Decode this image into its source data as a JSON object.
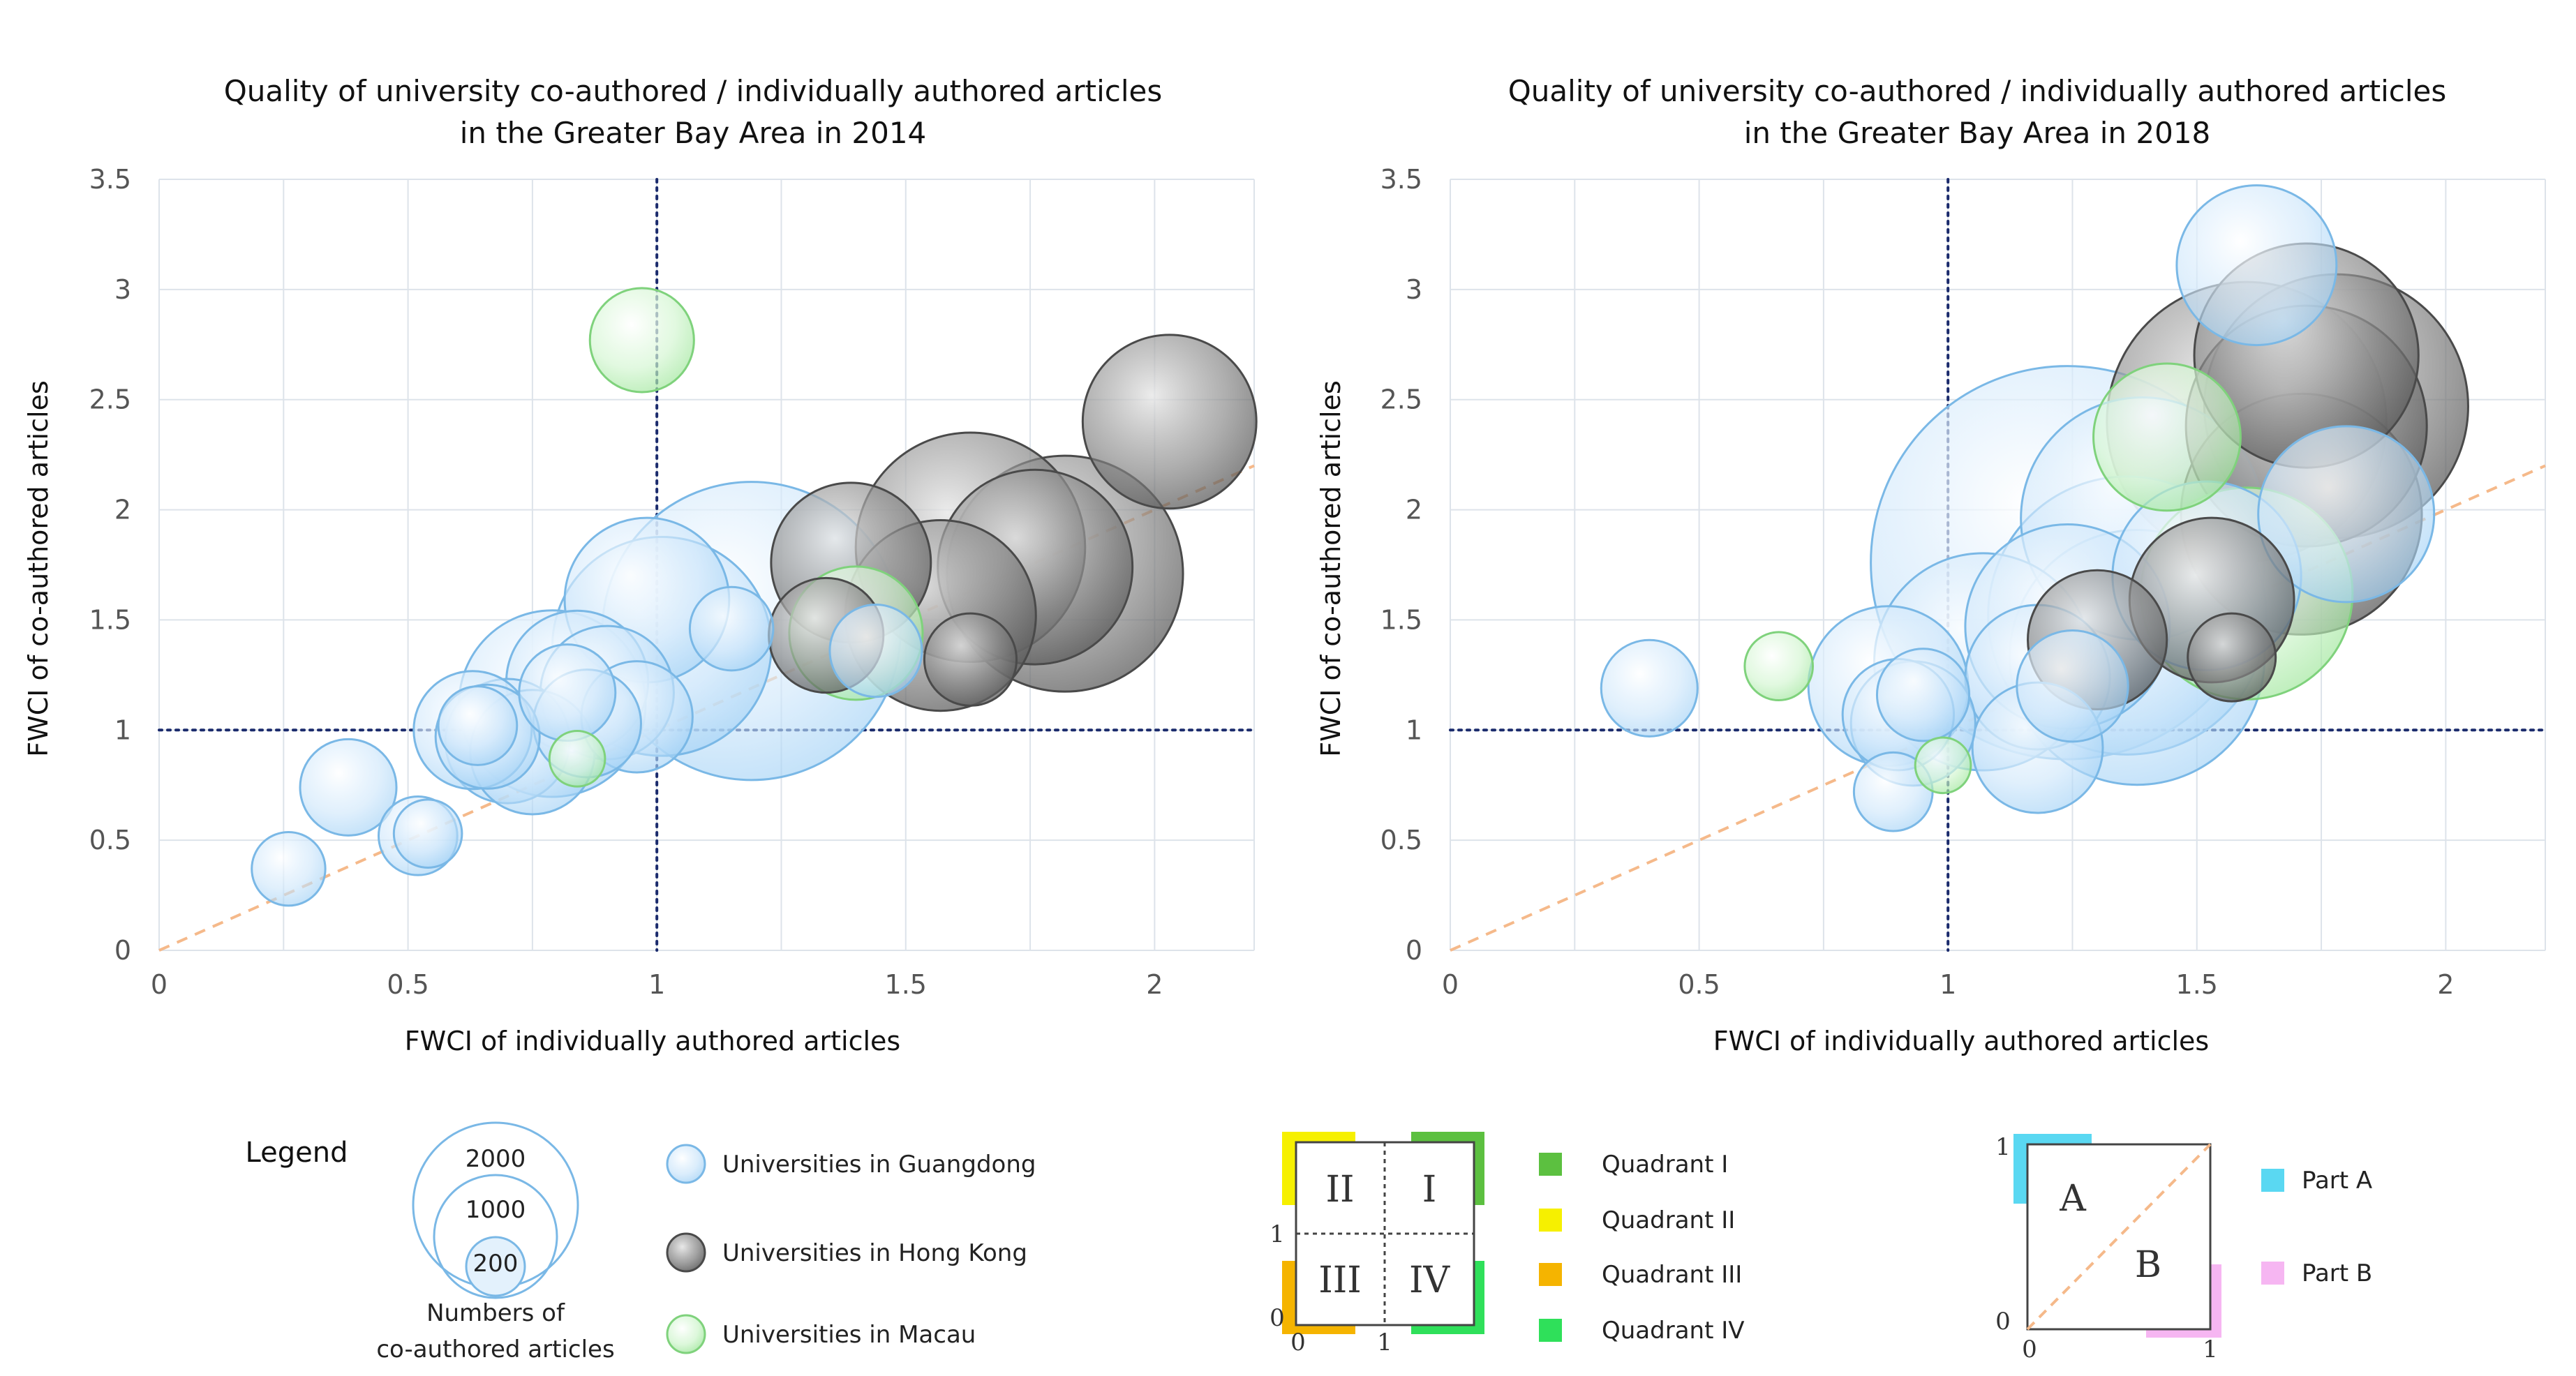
{
  "chart_data": [
    {
      "type": "scatter",
      "title_line1": "Quality of university co-authored / individually authored articles",
      "title_line2": "in the Greater Bay Area in 2014",
      "xlabel": "FWCI of individually authored articles",
      "ylabel": "FWCI of co-authored articles",
      "xlim": [
        0,
        2.2
      ],
      "ylim": [
        0,
        3.5
      ],
      "xticks": [
        "0",
        "0.5",
        "1",
        "1.5",
        "2"
      ],
      "yticks": [
        "0",
        "0.5",
        "1",
        "1.5",
        "2",
        "2.5",
        "3",
        "3.5"
      ],
      "grid": true,
      "series": [
        {
          "group": "guangdong",
          "points": [
            {
              "x": 0.26,
              "y": 0.37,
              "size": 70
            },
            {
              "x": 0.38,
              "y": 0.74,
              "size": 120
            },
            {
              "x": 0.52,
              "y": 0.52,
              "size": 80
            },
            {
              "x": 0.54,
              "y": 0.53,
              "size": 60
            },
            {
              "x": 0.63,
              "y": 1.0,
              "size": 180
            },
            {
              "x": 0.64,
              "y": 1.02,
              "size": 80
            },
            {
              "x": 0.66,
              "y": 0.97,
              "size": 140
            },
            {
              "x": 0.7,
              "y": 0.95,
              "size": 200
            },
            {
              "x": 0.75,
              "y": 0.9,
              "size": 200
            },
            {
              "x": 0.79,
              "y": 1.12,
              "size": 450
            },
            {
              "x": 0.82,
              "y": 1.17,
              "size": 120
            },
            {
              "x": 0.84,
              "y": 1.22,
              "size": 260
            },
            {
              "x": 0.86,
              "y": 1.03,
              "size": 150
            },
            {
              "x": 0.9,
              "y": 1.17,
              "size": 230
            },
            {
              "x": 0.96,
              "y": 1.06,
              "size": 160
            },
            {
              "x": 0.98,
              "y": 1.59,
              "size": 350
            },
            {
              "x": 1.01,
              "y": 1.38,
              "size": 620
            },
            {
              "x": 1.15,
              "y": 1.46,
              "size": 90
            },
            {
              "x": 1.19,
              "y": 1.45,
              "size": 1150
            },
            {
              "x": 1.44,
              "y": 1.36,
              "size": 110
            }
          ]
        },
        {
          "group": "hongkong",
          "points": [
            {
              "x": 1.34,
              "y": 1.43,
              "size": 170
            },
            {
              "x": 1.39,
              "y": 1.76,
              "size": 330
            },
            {
              "x": 1.57,
              "y": 1.52,
              "size": 470
            },
            {
              "x": 1.63,
              "y": 1.32,
              "size": 110
            },
            {
              "x": 1.63,
              "y": 1.83,
              "size": 680
            },
            {
              "x": 1.76,
              "y": 1.74,
              "size": 490
            },
            {
              "x": 1.82,
              "y": 1.71,
              "size": 720
            },
            {
              "x": 2.03,
              "y": 2.4,
              "size": 390
            }
          ]
        },
        {
          "group": "macau",
          "points": [
            {
              "x": 0.84,
              "y": 0.87,
              "size": 40
            },
            {
              "x": 0.97,
              "y": 2.77,
              "size": 140
            },
            {
              "x": 1.4,
              "y": 1.44,
              "size": 230
            }
          ]
        }
      ],
      "reference_lines": {
        "diagonal": true,
        "vertical_x": 1,
        "horizontal_y": 1
      }
    },
    {
      "type": "scatter",
      "title_line1": "Quality of university co-authored / individually authored articles",
      "title_line2": "in the Greater Bay Area in 2018",
      "xlabel": "FWCI of individually authored articles",
      "ylabel": "FWCI of co-authored articles",
      "xlim": [
        0,
        2.2
      ],
      "ylim": [
        0,
        3.5
      ],
      "xticks": [
        "0",
        "0.5",
        "1",
        "1.5",
        "2"
      ],
      "yticks": [
        "0",
        "0.5",
        "1",
        "1.5",
        "2",
        "2.5",
        "3",
        "3.5"
      ],
      "grid": true,
      "series": [
        {
          "group": "guangdong",
          "points": [
            {
              "x": 0.4,
              "y": 1.19,
              "size": 120
            },
            {
              "x": 0.89,
              "y": 0.72,
              "size": 80
            },
            {
              "x": 0.88,
              "y": 1.2,
              "size": 330
            },
            {
              "x": 0.9,
              "y": 1.07,
              "size": 160
            },
            {
              "x": 0.93,
              "y": 1.03,
              "size": 200
            },
            {
              "x": 0.95,
              "y": 1.16,
              "size": 110
            },
            {
              "x": 1.07,
              "y": 1.31,
              "size": 610
            },
            {
              "x": 1.18,
              "y": 0.92,
              "size": 220
            },
            {
              "x": 1.18,
              "y": 1.24,
              "size": 270
            },
            {
              "x": 1.24,
              "y": 1.76,
              "size": 2000
            },
            {
              "x": 1.24,
              "y": 1.47,
              "size": 540
            },
            {
              "x": 1.25,
              "y": 1.2,
              "size": 160
            },
            {
              "x": 1.36,
              "y": 1.52,
              "size": 1000
            },
            {
              "x": 1.38,
              "y": 1.33,
              "size": 840
            },
            {
              "x": 1.39,
              "y": 1.96,
              "size": 760
            },
            {
              "x": 1.52,
              "y": 1.7,
              "size": 460
            },
            {
              "x": 1.62,
              "y": 3.11,
              "size": 330
            },
            {
              "x": 1.8,
              "y": 1.98,
              "size": 400
            }
          ]
        },
        {
          "group": "hongkong",
          "points": [
            {
              "x": 1.3,
              "y": 1.41,
              "size": 250
            },
            {
              "x": 1.53,
              "y": 1.59,
              "size": 350
            },
            {
              "x": 1.57,
              "y": 1.33,
              "size": 100
            },
            {
              "x": 1.6,
              "y": 2.4,
              "size": 1010
            },
            {
              "x": 1.71,
              "y": 1.98,
              "size": 750
            },
            {
              "x": 1.72,
              "y": 2.7,
              "size": 650
            },
            {
              "x": 1.72,
              "y": 2.38,
              "size": 750
            },
            {
              "x": 1.78,
              "y": 2.47,
              "size": 900
            }
          ]
        },
        {
          "group": "macau",
          "points": [
            {
              "x": 0.66,
              "y": 1.29,
              "size": 60
            },
            {
              "x": 0.99,
              "y": 0.84,
              "size": 40
            },
            {
              "x": 1.44,
              "y": 2.33,
              "size": 280
            },
            {
              "x": 1.6,
              "y": 1.62,
              "size": 580
            }
          ]
        }
      ],
      "reference_lines": {
        "diagonal": true,
        "vertical_x": 1,
        "horizontal_y": 1
      }
    }
  ],
  "legend": {
    "heading": "Legend",
    "size_values": [
      "2000",
      "1000",
      "200"
    ],
    "size_caption_line1": "Numbers of",
    "size_caption_line2": "co-authored articles",
    "groups": [
      {
        "key": "guangdong",
        "label": "Universities in Guangdong",
        "color": "#bfe0fa",
        "stroke": "#7ab8e6"
      },
      {
        "key": "hongkong",
        "label": "Universities in Hong Kong",
        "color": "#7a7a7a",
        "stroke": "#4a4a4a"
      },
      {
        "key": "macau",
        "label": "Universities in Macau",
        "color": "#c8f2c6",
        "stroke": "#7fd27c"
      }
    ]
  },
  "quadrant_legend": {
    "numerals": [
      "II",
      "I",
      "III",
      "IV"
    ],
    "axis_one": "1",
    "axis_zero": "0",
    "items": [
      {
        "label": "Quadrant I",
        "color": "#5cc040"
      },
      {
        "label": "Quadrant II",
        "color": "#f6f000"
      },
      {
        "label": "Quadrant III",
        "color": "#f5b400"
      },
      {
        "label": "Quadrant IV",
        "color": "#2fe05a"
      }
    ]
  },
  "parts_legend": {
    "letters": [
      "A",
      "B"
    ],
    "axis_one": "1",
    "axis_zero": "0",
    "items": [
      {
        "label": "Part A",
        "color": "#5ad8f2"
      },
      {
        "label": "Part B",
        "color": "#f6b6f2"
      }
    ]
  },
  "colors": {
    "grid": "#dde3ea",
    "ref_line": "#1a2a6c",
    "diagonal": "#f5b98a"
  }
}
